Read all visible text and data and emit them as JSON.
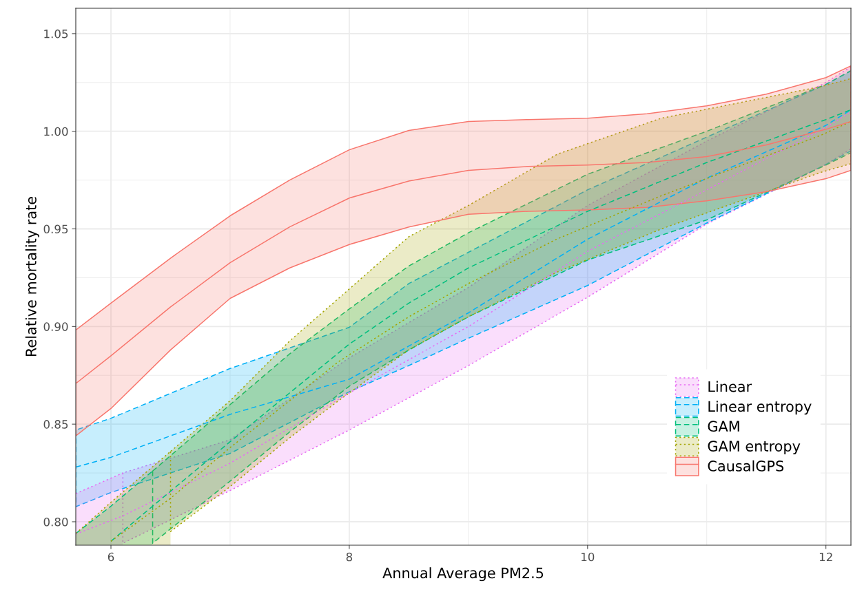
{
  "chart_data": {
    "type": "line",
    "xlabel": "Annual Average PM2.5",
    "ylabel": "Relative mortality rate",
    "xlim": [
      5.705,
      12.21
    ],
    "ylim": [
      0.788,
      1.063
    ],
    "xticks": [
      6,
      8,
      10,
      12
    ],
    "yticks": [
      {
        "value": 0.8,
        "label": "0.80"
      },
      {
        "value": 0.85,
        "label": "0.85"
      },
      {
        "value": 0.9,
        "label": "0.90"
      },
      {
        "value": 0.95,
        "label": "0.95"
      },
      {
        "value": 1.0,
        "label": "1.00"
      },
      {
        "value": 1.05,
        "label": "1.05"
      }
    ],
    "grid": true,
    "legend": "bottom right",
    "series": [
      {
        "name": "Linear",
        "color": "#e76bf3",
        "line_style": "dotted",
        "x": [
          5.705,
          6.1,
          7,
          8,
          9,
          10,
          11,
          12,
          12.21
        ],
        "values": [
          0.7937,
          0.803,
          0.83,
          0.866,
          0.9,
          0.9385,
          0.97,
          1.002,
          1.01
        ],
        "lower": [
          null,
          0.789,
          0.816,
          0.847,
          0.88,
          0.915,
          0.9525,
          0.983,
          0.991
        ],
        "upper": [
          null,
          0.825,
          0.842,
          0.884,
          0.92,
          0.962,
          0.995,
          1.025,
          1.033
        ]
      },
      {
        "name": "Linear entropy",
        "color": "#00b0f6",
        "line_style": "dashed",
        "x": [
          5.705,
          6,
          7,
          8,
          8.5,
          9,
          10,
          11,
          12,
          12.21
        ],
        "values": [
          0.828,
          0.833,
          0.855,
          0.873,
          0.89,
          0.907,
          0.9447,
          0.976,
          1.003,
          1.011
        ],
        "lower": [
          0.8077,
          0.815,
          0.835,
          0.8666,
          0.88,
          0.894,
          0.921,
          0.953,
          0.983,
          0.99
        ],
        "upper": [
          0.847,
          0.853,
          0.8785,
          0.8996,
          0.922,
          0.938,
          0.97,
          0.997,
          1.024,
          1.031
        ]
      },
      {
        "name": "GAM",
        "color": "#00bf7d",
        "line_style": "dashed",
        "x": [
          6,
          6.35,
          7,
          7.5,
          8,
          8.5,
          9,
          10,
          11,
          12,
          12.21
        ],
        "values": [
          0.79,
          0.808,
          0.841,
          0.866,
          0.891,
          0.912,
          0.93,
          0.959,
          0.984,
          1.006,
          1.011
        ],
        "lower": [
          null,
          0.789,
          0.8208,
          0.846,
          0.8694,
          0.888,
          0.905,
          0.934,
          0.9546,
          0.9827,
          0.989
        ],
        "upper": [
          null,
          0.826,
          0.86,
          0.886,
          0.909,
          0.931,
          0.948,
          0.978,
          1.0,
          1.024,
          1.031
        ]
      },
      {
        "name": "GAM entropy",
        "color": "#a3a500",
        "line_style": "dotted",
        "x": [
          6,
          6.5,
          7,
          7.5,
          7.91,
          8.5,
          9,
          9.75,
          10.62,
          11.96,
          12.21
        ],
        "values": [
          0.79,
          0.812,
          0.838,
          0.862,
          0.882,
          0.905,
          0.922,
          0.945,
          0.967,
          0.998,
          1.005
        ],
        "lower": [
          null,
          0.795,
          0.818,
          0.843,
          0.862,
          0.888,
          0.905,
          0.928,
          0.95,
          0.979,
          0.9834
        ],
        "upper": [
          null,
          0.836,
          0.862,
          0.8926,
          0.9144,
          0.946,
          0.962,
          0.9884,
          1.0067,
          1.0229,
          1.027
        ]
      },
      {
        "type": "area",
        "color": "#e76bf3",
        "line_style": "dotted",
        "x": [
          5.705,
          6.1
        ],
        "values": [
          0.8144,
          0.825
        ]
      },
      {
        "type": "area",
        "color": "#00bf7d",
        "line_style": "dashed",
        "x": [
          5.705,
          6,
          6.35
        ],
        "values": [
          0.794,
          0.808,
          0.826
        ]
      },
      {
        "type": "area",
        "color": "#a3a500",
        "line_style": "dotted",
        "x": [
          5.705,
          6,
          6.5
        ],
        "values": [
          0.794,
          0.81,
          0.836
        ]
      },
      {
        "name": "CausalGPS",
        "color": "#f8766d",
        "line_style": "solid",
        "x": [
          5.705,
          6,
          6.5,
          7,
          7.5,
          8,
          8.5,
          9,
          9.5,
          10,
          10.5,
          11,
          11.5,
          12,
          12.21
        ],
        "values": [
          0.8708,
          0.885,
          0.91,
          0.9327,
          0.951,
          0.9658,
          0.9745,
          0.98,
          0.982,
          0.9827,
          0.984,
          0.987,
          0.993,
          1.001,
          1.005
        ],
        "lower": [
          0.844,
          0.858,
          0.888,
          0.9144,
          0.93,
          0.942,
          0.951,
          0.9575,
          0.959,
          0.9597,
          0.961,
          0.9644,
          0.969,
          0.9757,
          0.98
        ],
        "upper": [
          0.8982,
          0.912,
          0.935,
          0.9567,
          0.975,
          0.9905,
          1.0004,
          1.005,
          1.006,
          1.0067,
          1.009,
          1.013,
          1.019,
          1.0275,
          1.0335
        ]
      }
    ]
  }
}
